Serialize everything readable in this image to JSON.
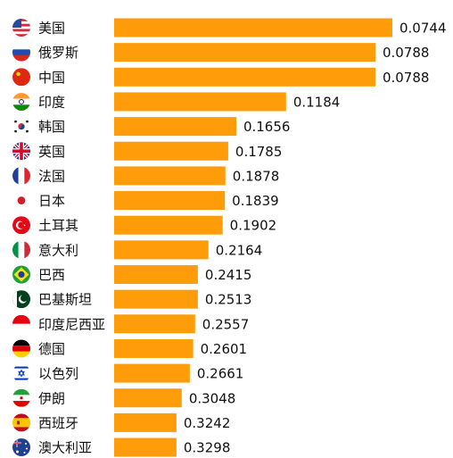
{
  "chart_data": {
    "type": "bar",
    "orientation": "horizontal",
    "categories": [
      "美国",
      "俄罗斯",
      "中国",
      "印度",
      "韩国",
      "英国",
      "法国",
      "日本",
      "土耳其",
      "意大利",
      "巴西",
      "巴基斯坦",
      "印度尼西亚",
      "德国",
      "以色列",
      "伊朗",
      "西班牙",
      "澳大利亚"
    ],
    "flag_icons": [
      "flag-us-icon",
      "flag-ru-icon",
      "flag-cn-icon",
      "flag-in-icon",
      "flag-kr-icon",
      "flag-gb-icon",
      "flag-fr-icon",
      "flag-jp-icon",
      "flag-tr-icon",
      "flag-it-icon",
      "flag-br-icon",
      "flag-pk-icon",
      "flag-id-icon",
      "flag-de-icon",
      "flag-il-icon",
      "flag-ir-icon",
      "flag-es-icon",
      "flag-au-icon"
    ],
    "values": [
      0.0744,
      0.0788,
      0.0788,
      0.1184,
      0.1656,
      0.1785,
      0.1878,
      0.1839,
      0.1902,
      0.2164,
      0.2415,
      0.2513,
      0.2557,
      0.2601,
      0.2661,
      0.3048,
      0.3242,
      0.3298
    ],
    "value_labels": [
      "0.0744",
      "0.0788",
      "0.0788",
      "0.1184",
      "0.1656",
      "0.1785",
      "0.1878",
      "0.1839",
      "0.1902",
      "0.2164",
      "0.2415",
      "0.2513",
      "0.2557",
      "0.2601",
      "0.2661",
      "0.3048",
      "0.3242",
      "0.3298"
    ],
    "bar_lengths": [
      1.0,
      0.939,
      0.939,
      0.618,
      0.439,
      0.41,
      0.4,
      0.398,
      0.39,
      0.339,
      0.301,
      0.301,
      0.291,
      0.284,
      0.272,
      0.243,
      0.224,
      0.224
    ],
    "bar_color": "#ff9c0a",
    "title": "",
    "xlabel": "",
    "ylabel": "",
    "legend": "none",
    "grid": false
  }
}
